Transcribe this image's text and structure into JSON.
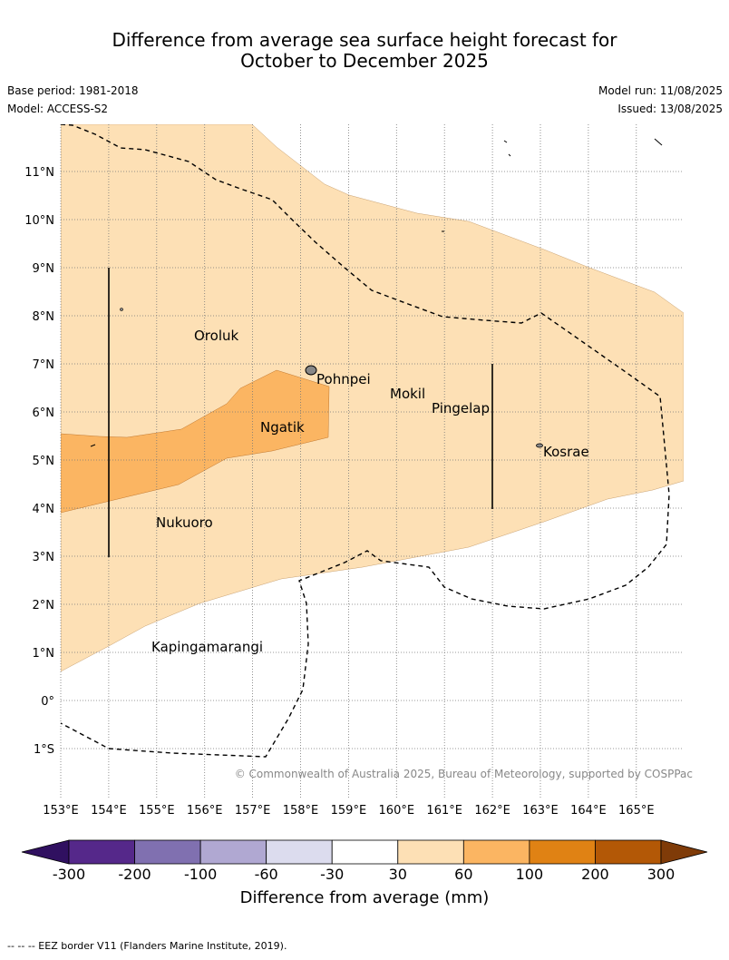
{
  "title_line1": "Difference from average sea surface height forecast for",
  "title_line2": "October to December 2025",
  "base_period": "Base period: 1981-2018",
  "model": "Model: ACCESS-S2",
  "model_run": "Model run: 11/08/2025",
  "issued": "Issued: 13/08/2025",
  "latitude_labels": [
    "11°N",
    "10°N",
    "9°N",
    "8°N",
    "7°N",
    "6°N",
    "5°N",
    "4°N",
    "3°N",
    "2°N",
    "1°N",
    "0°",
    "1°S"
  ],
  "longitude_labels": [
    "153°E",
    "154°E",
    "155°E",
    "156°E",
    "157°E",
    "158°E",
    "159°E",
    "160°E",
    "161°E",
    "162°E",
    "163°E",
    "164°E",
    "165°E"
  ],
  "places": [
    "Oroluk",
    "Pohnpei",
    "Mokil",
    "Pingelap",
    "Ngatik",
    "Kosrae",
    "Nukuoro",
    "Kapingamarangi"
  ],
  "copyright": "© Commonwealth of Australia 2025, Bureau of Meteorology, supported by COSPPac",
  "colorbar": {
    "ticks": [
      "-300",
      "-200",
      "-100",
      "-60",
      "-30",
      "30",
      "60",
      "100",
      "200",
      "300"
    ],
    "colors": [
      "#301060",
      "#55288a",
      "#8070b0",
      "#b0a8d2",
      "#dcdcee",
      "#ffffff",
      "#fde0b5",
      "#fbb562",
      "#e08214",
      "#b35806",
      "#7f3b08"
    ],
    "title": "Difference from average (mm)"
  },
  "footnote": "--  --  -- EEZ border V11 (Flanders Marine Institute, 2019)."
}
